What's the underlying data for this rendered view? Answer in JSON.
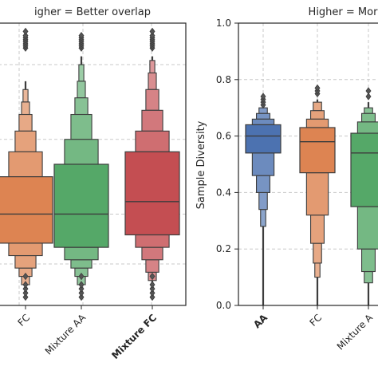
{
  "chart_data": [
    {
      "type": "boxen",
      "title": "igher = Better overlap",
      "ylabel": "",
      "xlabel": "",
      "categories": [
        "FC",
        "Mixture AA",
        "Mixture FC"
      ],
      "bold_categories": [
        "Mixture FC"
      ],
      "grid": true,
      "colors": [
        "#dd8452",
        "#55a868",
        "#c44e52"
      ],
      "series": [
        {
          "category": "FC",
          "median": 0.2,
          "top": 0.53,
          "bottom": 0.0,
          "q1": 0.13,
          "q3": 0.29,
          "upper_levels": [
            0.29,
            0.35,
            0.4,
            0.44,
            0.47,
            0.5
          ],
          "lower_levels": [
            0.13,
            0.1,
            0.07,
            0.05,
            0.03
          ],
          "upper_whisker_end": 0.52,
          "lower_whisker_end": 0.0,
          "outliers": [
            0.6,
            0.605,
            0.61,
            0.615,
            0.62,
            0.625,
            0.63,
            0.64
          ]
        },
        {
          "category": "Mixture AA",
          "median": 0.2,
          "top": 0.62,
          "bottom": 0.0,
          "q1": 0.12,
          "q3": 0.32,
          "upper_levels": [
            0.32,
            0.38,
            0.44,
            0.48,
            0.52,
            0.56
          ],
          "lower_levels": [
            0.12,
            0.09,
            0.07,
            0.05,
            0.03
          ],
          "upper_whisker_end": 0.58,
          "lower_whisker_end": 0.0,
          "outliers": [
            0.6,
            0.605,
            0.61,
            0.615,
            0.62,
            0.625,
            0.63
          ]
        },
        {
          "category": "Mixture FC",
          "median": 0.23,
          "top": 0.62,
          "bottom": 0.0,
          "q1": 0.15,
          "q3": 0.35,
          "upper_levels": [
            0.35,
            0.4,
            0.45,
            0.5,
            0.54,
            0.57
          ],
          "lower_levels": [
            0.15,
            0.12,
            0.09,
            0.06,
            0.04
          ],
          "upper_whisker_end": 0.58,
          "lower_whisker_end": 0.0,
          "outliers": [
            0.6,
            0.605,
            0.61,
            0.615,
            0.62,
            0.625,
            0.63,
            0.64
          ]
        }
      ]
    },
    {
      "type": "boxen",
      "title": "Higher = Mor",
      "ylabel": "Sample Diversity",
      "xlabel": "",
      "categories": [
        "AA",
        "FC",
        "Mixture A"
      ],
      "bold_categories": [
        "AA"
      ],
      "ylim": [
        0.0,
        1.0
      ],
      "yticks": [
        "0.0",
        "0.2",
        "0.4",
        "0.6",
        "0.8",
        "1.0"
      ],
      "grid": true,
      "colors": [
        "#4c72b0",
        "#dd8452",
        "#55a868"
      ],
      "series": [
        {
          "category": "AA",
          "median": 0.6,
          "q1": 0.54,
          "q3": 0.64,
          "upper_levels": [
            0.64,
            0.66,
            0.68,
            0.7
          ],
          "lower_levels": [
            0.54,
            0.46,
            0.4,
            0.34,
            0.28
          ],
          "upper_whisker_end": 0.7,
          "lower_whisker_end": 0.0,
          "outliers": [
            0.71,
            0.72,
            0.73,
            0.74
          ]
        },
        {
          "category": "FC",
          "median": 0.58,
          "q1": 0.47,
          "q3": 0.63,
          "upper_levels": [
            0.63,
            0.66,
            0.69,
            0.72
          ],
          "lower_levels": [
            0.47,
            0.32,
            0.22,
            0.15,
            0.1
          ],
          "upper_whisker_end": 0.73,
          "lower_whisker_end": 0.0,
          "outliers": [
            0.75,
            0.76,
            0.77
          ]
        },
        {
          "category": "Mixture A",
          "median": 0.54,
          "q1": 0.35,
          "q3": 0.61,
          "upper_levels": [
            0.61,
            0.65,
            0.68,
            0.7
          ],
          "lower_levels": [
            0.35,
            0.2,
            0.12,
            0.08
          ],
          "upper_whisker_end": 0.72,
          "lower_whisker_end": 0.0,
          "outliers": [
            0.74,
            0.76
          ]
        }
      ]
    }
  ]
}
